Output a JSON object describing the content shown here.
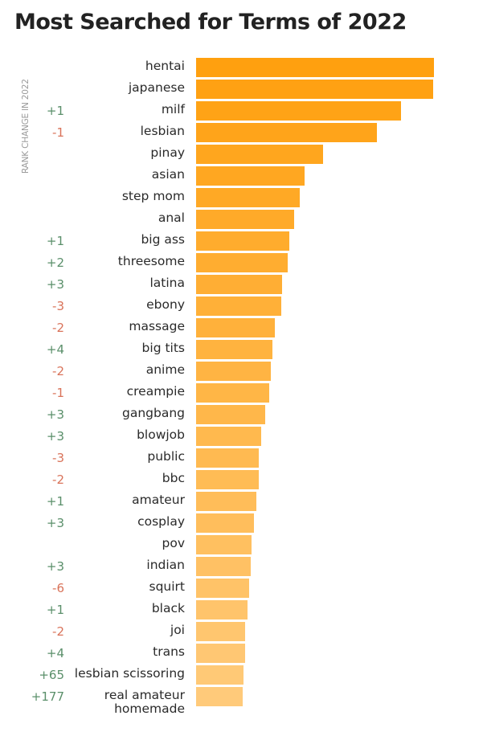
{
  "title": "Most Searched for Terms of 2022",
  "rank_change_label": "RANK CHANGE IN 2022",
  "colors": {
    "bar_top": "#FFA00F",
    "bar_bottom": "#FFCA7A",
    "positive": "#5a8f6a",
    "negative": "#d9735a"
  },
  "chart_data": {
    "type": "bar",
    "orientation": "horizontal",
    "title": "Most Searched for Terms of 2022",
    "value_note": "relative bar length, top term = 100 (no axis printed)",
    "categories": [
      "hentai",
      "japanese",
      "milf",
      "lesbian",
      "pinay",
      "asian",
      "step mom",
      "anal",
      "big ass",
      "threesome",
      "latina",
      "ebony",
      "massage",
      "big tits",
      "anime",
      "creampie",
      "gangbang",
      "blowjob",
      "public",
      "bbc",
      "amateur",
      "cosplay",
      "pov",
      "indian",
      "squirt",
      "black",
      "joi",
      "trans",
      "lesbian scissoring",
      "real amateur homemade"
    ],
    "values": [
      100,
      99.7,
      86.1,
      76.0,
      53.4,
      45.6,
      43.6,
      41.2,
      39.2,
      38.5,
      36.1,
      35.8,
      33.1,
      32.1,
      31.4,
      30.7,
      29.1,
      27.4,
      26.4,
      26.4,
      25.3,
      24.3,
      23.3,
      22.9,
      22.3,
      21.6,
      20.6,
      20.6,
      19.9,
      19.6
    ],
    "rank_change": [
      "",
      "",
      "+1",
      "-1",
      "",
      "",
      "",
      "",
      "+1",
      "+2",
      "+3",
      "-3",
      "-2",
      "+4",
      "-2",
      "-1",
      "+3",
      "+3",
      "-3",
      "-2",
      "+1",
      "+3",
      "",
      "+3",
      "-6",
      "+1",
      "-2",
      "+4",
      "+65",
      "+177"
    ],
    "grid": false,
    "legend": "none"
  }
}
